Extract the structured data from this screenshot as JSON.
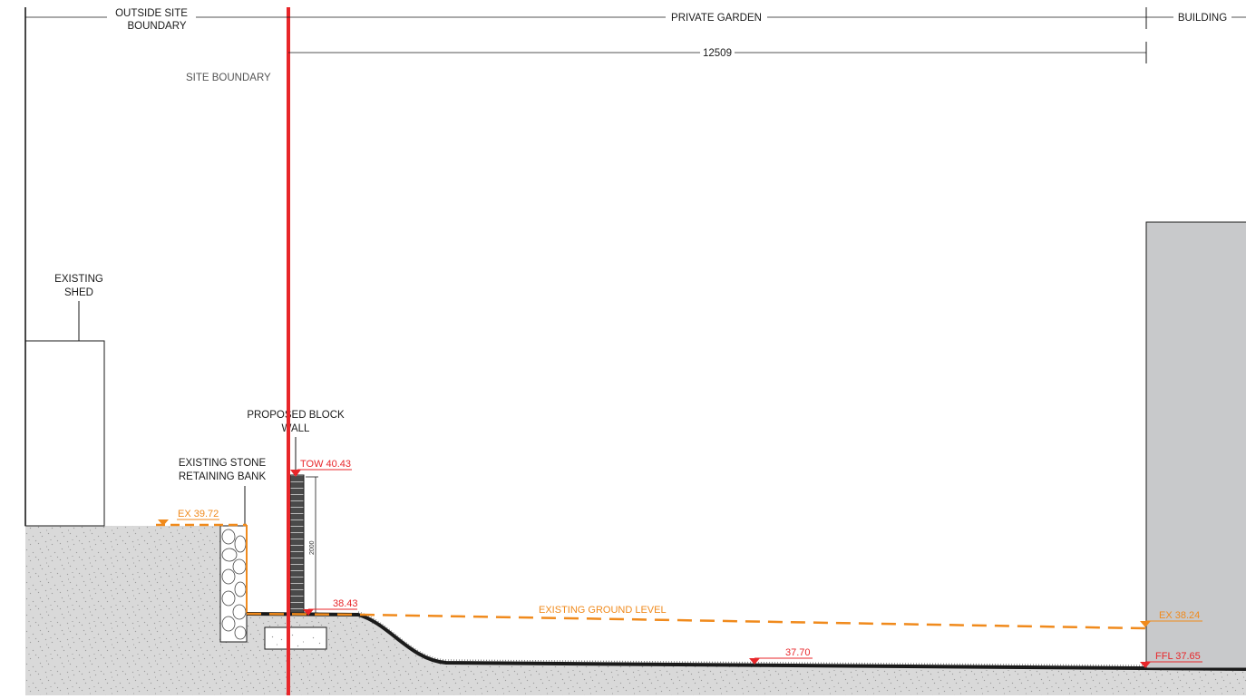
{
  "labels": {
    "outside_site_boundary_1": "OUTSIDE SITE",
    "outside_site_boundary_2": "BOUNDARY",
    "private_garden": "PRIVATE GARDEN",
    "building": "BUILDING",
    "dimension_12509": "12509",
    "site_boundary": "SITE BOUNDARY",
    "existing_shed_1": "EXISTING",
    "existing_shed_2": "SHED",
    "proposed_block_wall_1": "PROPOSED BLOCK",
    "proposed_block_wall_2": "WALL",
    "existing_stone_1": "EXISTING STONE",
    "existing_stone_2": "RETAINING BANK",
    "existing_ground_level": "EXISTING GROUND LEVEL",
    "wall_height": "2000"
  },
  "levels": {
    "tow": "TOW 40.43",
    "ex_left": "EX 39.72",
    "step": "38.43",
    "mid": "37.70",
    "ex_right": "EX 38.24",
    "ffl": "FFL 37.65"
  },
  "colors": {
    "boundary_red": "#e8262a",
    "existing_orange": "#f08a1c",
    "ground": "#d9d9d9",
    "building": "#c8c9cb",
    "ink": "#1a1a1a"
  }
}
